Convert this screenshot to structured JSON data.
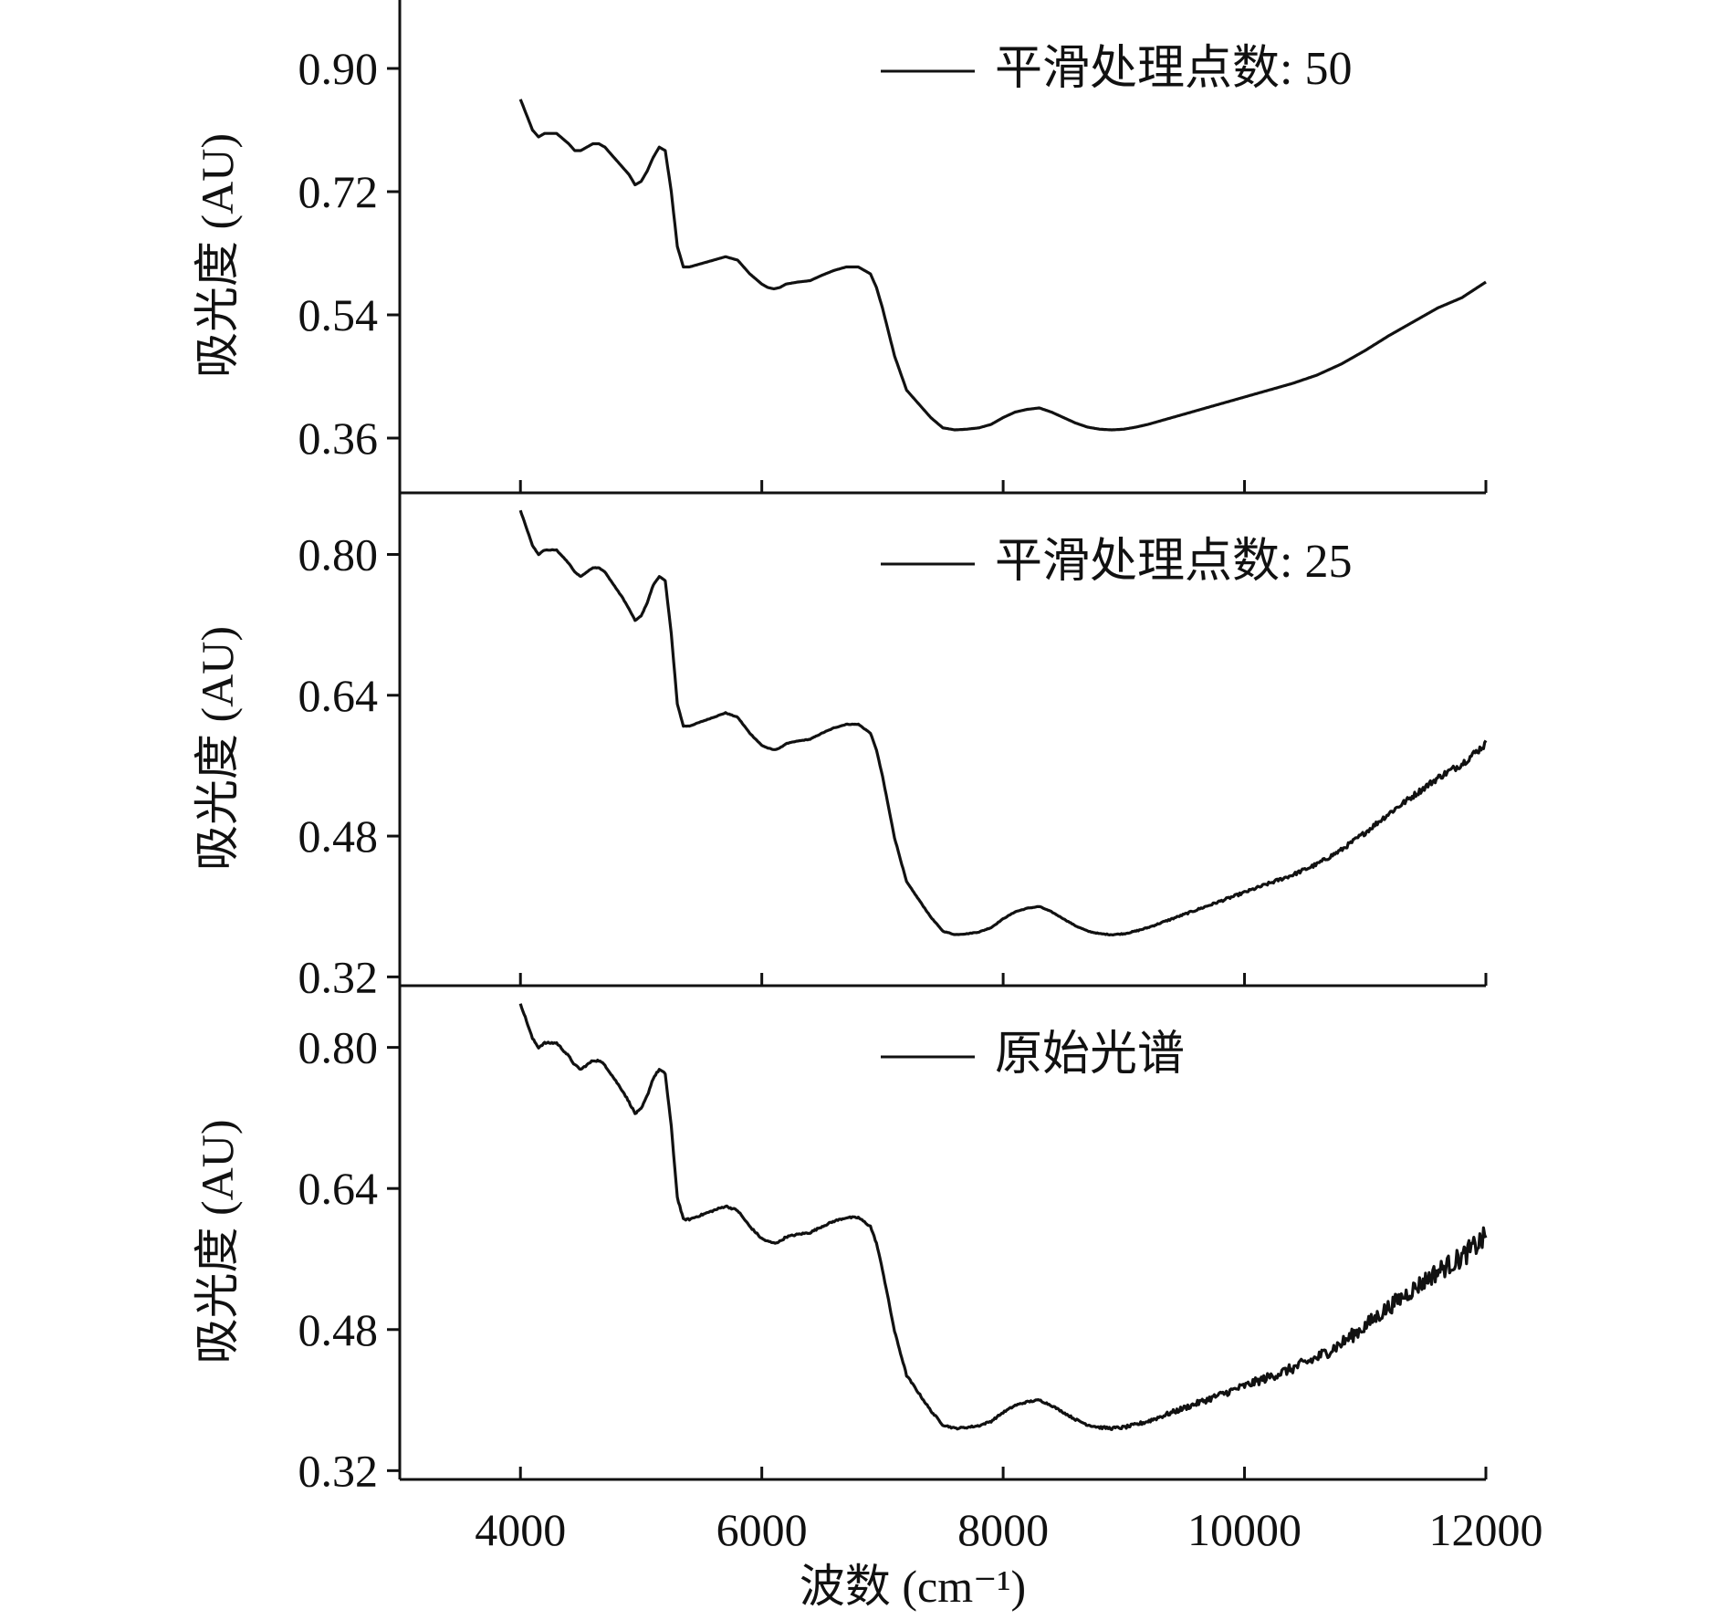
{
  "chart_data": {
    "type": "line",
    "layout": "stacked-panels-shared-x",
    "xlabel": "波数 (cm⁻¹)",
    "xlim": [
      3000,
      12000
    ],
    "xticks": [
      "4000",
      "6000",
      "8000",
      "10000",
      "12000"
    ],
    "xtick_values": [
      4000,
      6000,
      8000,
      10000,
      12000
    ],
    "line_color": "#111111",
    "x": [
      4000,
      4100,
      4150,
      4200,
      4300,
      4400,
      4450,
      4500,
      4550,
      4600,
      4650,
      4700,
      4750,
      4800,
      4850,
      4900,
      4950,
      5000,
      5050,
      5100,
      5150,
      5200,
      5250,
      5300,
      5350,
      5400,
      5500,
      5600,
      5700,
      5800,
      5900,
      6000,
      6050,
      6100,
      6150,
      6200,
      6300,
      6400,
      6500,
      6600,
      6700,
      6800,
      6900,
      6950,
      7000,
      7100,
      7200,
      7300,
      7400,
      7500,
      7600,
      7700,
      7800,
      7900,
      8000,
      8100,
      8200,
      8300,
      8400,
      8500,
      8600,
      8700,
      8800,
      8900,
      9000,
      9100,
      9200,
      9400,
      9600,
      9800,
      10000,
      10200,
      10400,
      10600,
      10800,
      11000,
      11200,
      11400,
      11600,
      11800,
      12000
    ],
    "panels": [
      {
        "ylabel": "吸光度 (AU)",
        "ylim": [
          0.28,
          1.0
        ],
        "yticks": [
          "0.36",
          "0.54",
          "0.72",
          "0.90"
        ],
        "ytick_values": [
          0.36,
          0.54,
          0.72,
          0.9
        ],
        "legend": "平滑处理点数: 50",
        "legend_position": "top-right",
        "noise": 0,
        "y": [
          0.855,
          0.81,
          0.8,
          0.805,
          0.805,
          0.79,
          0.78,
          0.78,
          0.785,
          0.79,
          0.79,
          0.785,
          0.775,
          0.765,
          0.755,
          0.745,
          0.73,
          0.735,
          0.75,
          0.77,
          0.785,
          0.78,
          0.72,
          0.64,
          0.61,
          0.61,
          0.615,
          0.62,
          0.625,
          0.62,
          0.6,
          0.585,
          0.58,
          0.578,
          0.58,
          0.585,
          0.588,
          0.59,
          0.598,
          0.605,
          0.61,
          0.61,
          0.6,
          0.58,
          0.55,
          0.48,
          0.43,
          0.41,
          0.39,
          0.375,
          0.372,
          0.373,
          0.375,
          0.38,
          0.39,
          0.398,
          0.402,
          0.404,
          0.398,
          0.39,
          0.382,
          0.376,
          0.373,
          0.372,
          0.373,
          0.376,
          0.38,
          0.39,
          0.4,
          0.41,
          0.42,
          0.43,
          0.44,
          0.452,
          0.468,
          0.488,
          0.51,
          0.53,
          0.55,
          0.565,
          0.588
        ]
      },
      {
        "ylabel": "吸光度 (AU)",
        "ylim": [
          0.31,
          0.87
        ],
        "yticks": [
          "0.32",
          "0.48",
          "0.64",
          "0.80"
        ],
        "ytick_values": [
          0.32,
          0.48,
          0.64,
          0.8
        ],
        "legend": "平滑处理点数: 25",
        "legend_position": "top-right",
        "noise": 0.004,
        "y": [
          0.85,
          0.81,
          0.8,
          0.805,
          0.805,
          0.79,
          0.78,
          0.775,
          0.78,
          0.785,
          0.785,
          0.78,
          0.77,
          0.76,
          0.75,
          0.738,
          0.725,
          0.73,
          0.745,
          0.765,
          0.775,
          0.77,
          0.71,
          0.63,
          0.605,
          0.605,
          0.61,
          0.615,
          0.62,
          0.615,
          0.597,
          0.583,
          0.58,
          0.578,
          0.58,
          0.585,
          0.588,
          0.59,
          0.597,
          0.603,
          0.607,
          0.607,
          0.597,
          0.578,
          0.548,
          0.478,
          0.428,
          0.408,
          0.388,
          0.372,
          0.368,
          0.369,
          0.371,
          0.376,
          0.386,
          0.394,
          0.398,
          0.4,
          0.394,
          0.386,
          0.378,
          0.372,
          0.369,
          0.368,
          0.369,
          0.372,
          0.376,
          0.386,
          0.396,
          0.406,
          0.416,
          0.426,
          0.436,
          0.448,
          0.464,
          0.484,
          0.506,
          0.526,
          0.546,
          0.562,
          0.585
        ]
      },
      {
        "ylabel": "吸光度 (AU)",
        "ylim": [
          0.31,
          0.87
        ],
        "yticks": [
          "0.32",
          "0.48",
          "0.64",
          "0.80"
        ],
        "ytick_values": [
          0.32,
          0.48,
          0.64,
          0.8
        ],
        "legend": "原始光谱",
        "legend_position": "top-right",
        "noise": 0.012,
        "y": [
          0.85,
          0.81,
          0.8,
          0.805,
          0.805,
          0.79,
          0.78,
          0.775,
          0.78,
          0.785,
          0.785,
          0.78,
          0.77,
          0.76,
          0.75,
          0.738,
          0.725,
          0.73,
          0.745,
          0.765,
          0.775,
          0.77,
          0.71,
          0.63,
          0.605,
          0.605,
          0.61,
          0.615,
          0.62,
          0.615,
          0.597,
          0.583,
          0.58,
          0.578,
          0.58,
          0.585,
          0.588,
          0.59,
          0.597,
          0.603,
          0.607,
          0.607,
          0.597,
          0.578,
          0.548,
          0.478,
          0.428,
          0.408,
          0.388,
          0.372,
          0.368,
          0.369,
          0.371,
          0.376,
          0.386,
          0.394,
          0.398,
          0.4,
          0.394,
          0.386,
          0.378,
          0.372,
          0.369,
          0.368,
          0.369,
          0.372,
          0.376,
          0.386,
          0.396,
          0.406,
          0.416,
          0.426,
          0.436,
          0.448,
          0.464,
          0.484,
          0.506,
          0.526,
          0.546,
          0.562,
          0.585
        ]
      }
    ]
  }
}
